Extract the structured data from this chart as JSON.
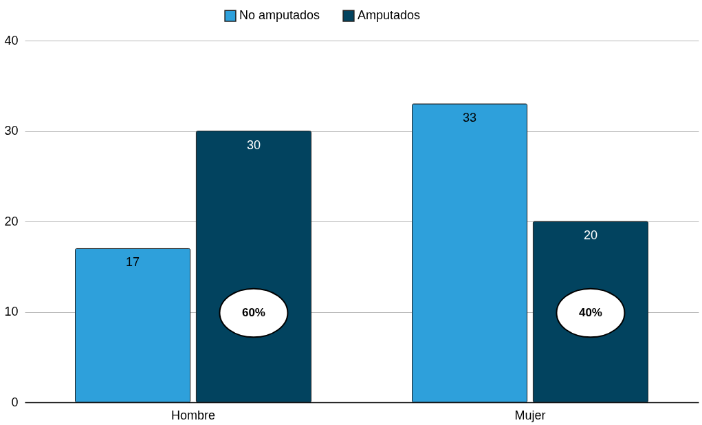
{
  "chart_data": {
    "type": "bar",
    "categories": [
      "Hombre",
      "Mujer"
    ],
    "series": [
      {
        "name": "No amputados",
        "color": "#2ea0db",
        "values": [
          17,
          33
        ]
      },
      {
        "name": "Amputados",
        "color": "#02435f",
        "values": [
          30,
          20
        ]
      }
    ],
    "ylim": [
      0,
      40
    ],
    "yticks": [
      0,
      10,
      20,
      30,
      40
    ],
    "grid": "y",
    "legend": "top",
    "data_labels": true,
    "annotations": [
      "60%",
      "40%"
    ]
  }
}
